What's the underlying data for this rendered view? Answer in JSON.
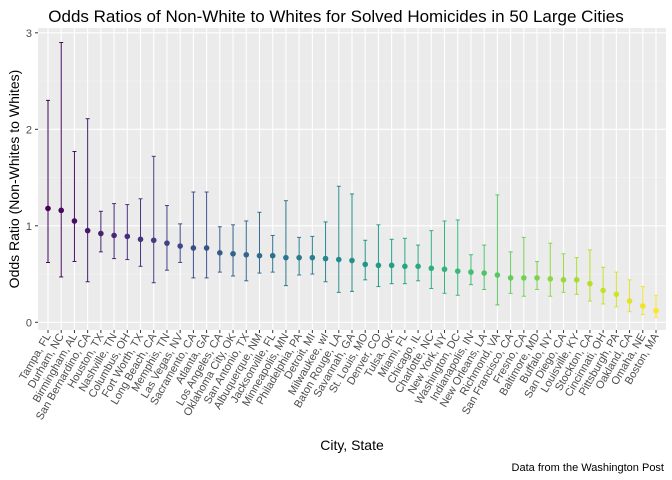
{
  "chart_data": {
    "type": "errorbar",
    "title": "Odds Ratios of Non-White to Whites for Solved Homicides in 50 Large Cities",
    "xlabel": "City, State",
    "ylabel": "Odds Ratio (Non-Whites to Whites)",
    "caption": "Data from the Washington Post",
    "ylim": [
      -0.08,
      3.05
    ],
    "yticks": [
      0,
      1,
      2,
      3
    ],
    "grid": true,
    "legend": "none",
    "categories": [
      "Tampa, FL",
      "Durham, NC",
      "Birmingham, AL",
      "San Bernardino, CA",
      "Houston, TX",
      "Nashville, TN",
      "Columbus, OH",
      "Fort Worth, TX",
      "Long Beach, CA",
      "Memphis, TN",
      "Las Vegas, NV",
      "Sacramento, CA",
      "Atlanta, GA",
      "Los Angeles, CA",
      "Oklahoma City, OK",
      "San Antonio, TX",
      "Albuquerque, NM",
      "Jacksonville, FL",
      "Minneapolis, MN",
      "Philadelphia, PA",
      "Detroit, MI",
      "Milwaukee, wI",
      "Baton Rouge, LA",
      "Savannah, GA",
      "St. Louis, MO",
      "Denver, CO",
      "Tulsa, OK",
      "Miami, FL",
      "Chicago, IL",
      "Charlotte, NC",
      "New York, NY",
      "Washington, DC",
      "Indianapolis, IN",
      "New Orleans, LA",
      "Richmond, VA",
      "San Francisco, CA",
      "Fresno, CA",
      "Baltimore, MD",
      "Buffalo, NY",
      "San Diego, CA",
      "Louisville, KY",
      "Stockton, CA",
      "Cincinnati, OH",
      "Pittsburgh, PA",
      "Oakland, CA",
      "Omaha, NE",
      "Boston, MA"
    ],
    "series": [
      {
        "estimate": [
          1.18,
          1.16,
          1.05,
          0.95,
          0.92,
          0.9,
          0.89,
          0.86,
          0.85,
          0.82,
          0.79,
          0.77,
          0.77,
          0.72,
          0.71,
          0.7,
          0.69,
          0.69,
          0.67,
          0.67,
          0.67,
          0.66,
          0.65,
          0.64,
          0.6,
          0.59,
          0.59,
          0.58,
          0.58,
          0.56,
          0.55,
          0.53,
          0.52,
          0.51,
          0.49,
          0.46,
          0.46,
          0.46,
          0.45,
          0.44,
          0.44,
          0.4,
          0.33,
          0.29,
          0.22,
          0.17,
          0.12
        ],
        "lower": [
          0.62,
          0.47,
          0.63,
          0.42,
          0.73,
          0.66,
          0.65,
          0.58,
          0.41,
          0.54,
          0.62,
          0.46,
          0.46,
          0.52,
          0.48,
          0.43,
          0.51,
          0.52,
          0.38,
          0.49,
          0.5,
          0.42,
          0.31,
          0.32,
          0.44,
          0.37,
          0.4,
          0.4,
          0.43,
          0.35,
          0.3,
          0.28,
          0.39,
          0.34,
          0.18,
          0.3,
          0.27,
          0.34,
          0.27,
          0.31,
          0.29,
          0.22,
          0.19,
          0.16,
          0.11,
          0.08,
          0.05
        ],
        "upper": [
          2.3,
          2.9,
          1.77,
          2.11,
          1.15,
          1.23,
          1.22,
          1.28,
          1.72,
          1.21,
          1.02,
          1.35,
          1.35,
          0.99,
          1.01,
          1.05,
          1.14,
          0.9,
          1.26,
          0.88,
          0.89,
          1.04,
          1.41,
          1.33,
          0.85,
          1.01,
          0.86,
          0.87,
          0.8,
          0.95,
          1.05,
          1.06,
          0.7,
          0.8,
          1.32,
          0.73,
          0.88,
          0.63,
          0.82,
          0.71,
          0.67,
          0.75,
          0.57,
          0.52,
          0.44,
          0.37,
          0.28
        ]
      }
    ],
    "colors": {
      "panel": "#ebebeb",
      "gridMajor": "#ffffff",
      "gridMinor": "#f4f4f4",
      "start": "#440154",
      "end": "#fde725"
    }
  }
}
